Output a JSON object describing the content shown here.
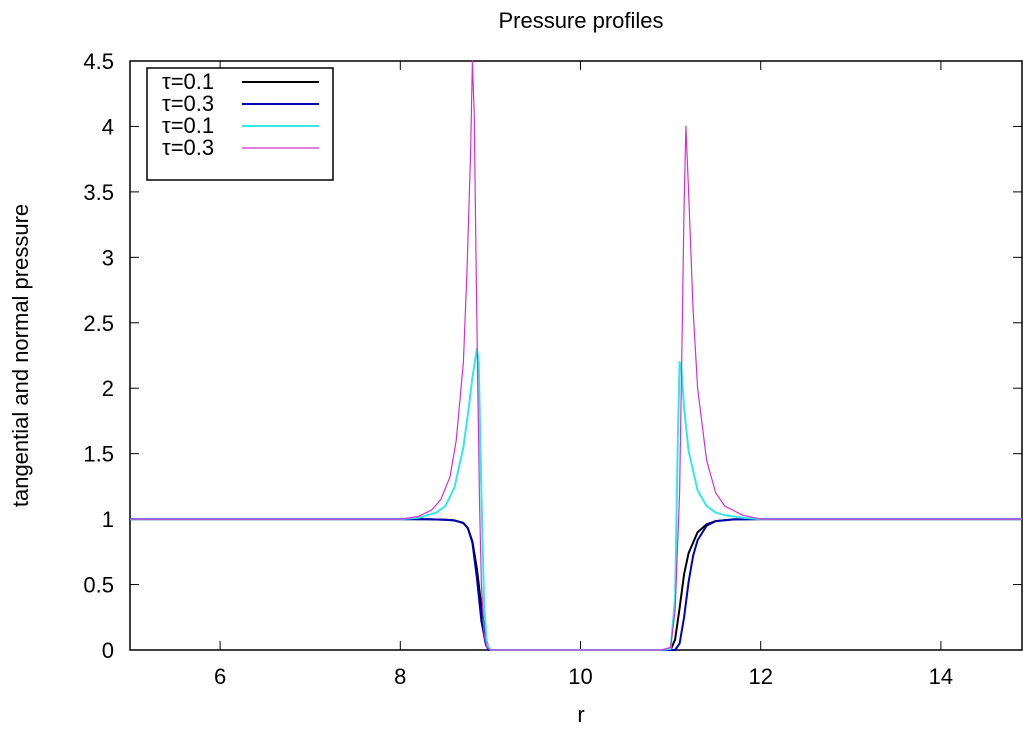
{
  "chart_data": {
    "type": "line",
    "title": "Pressure profiles",
    "xlabel": "r",
    "ylabel": "tangential and normal pressure",
    "xlim": [
      5,
      14.9
    ],
    "ylim": [
      0,
      4.5
    ],
    "x_ticks": [
      6,
      8,
      10,
      12,
      14
    ],
    "y_ticks": [
      0,
      0.5,
      1,
      1.5,
      2,
      2.5,
      3,
      3.5,
      4,
      4.5
    ],
    "grid": false,
    "legend_position": "top-left",
    "series": [
      {
        "name": "τ=0.1",
        "color": "#000000",
        "x": [
          5.0,
          8.0,
          8.3,
          8.5,
          8.6,
          8.7,
          8.75,
          8.8,
          8.85,
          8.9,
          8.95,
          8.98,
          9.0,
          9.5,
          10.0,
          10.5,
          11.0,
          11.05,
          11.1,
          11.15,
          11.2,
          11.3,
          11.4,
          11.5,
          11.7,
          12.0,
          14.9
        ],
        "y": [
          1.0,
          1.0,
          0.999,
          0.995,
          0.99,
          0.97,
          0.93,
          0.83,
          0.62,
          0.33,
          0.09,
          0.01,
          0.0,
          0.0,
          0.0,
          0.0,
          0.0,
          0.08,
          0.32,
          0.58,
          0.74,
          0.9,
          0.96,
          0.985,
          0.998,
          1.0,
          1.0
        ]
      },
      {
        "name": "τ=0.3",
        "color": "#0000b4",
        "x": [
          5.0,
          8.0,
          8.3,
          8.5,
          8.6,
          8.7,
          8.75,
          8.8,
          8.85,
          8.9,
          8.95,
          8.98,
          9.0,
          9.5,
          10.0,
          10.5,
          11.05,
          11.1,
          11.15,
          11.2,
          11.25,
          11.3,
          11.4,
          11.5,
          11.7,
          12.0,
          14.9
        ],
        "y": [
          1.0,
          1.0,
          0.999,
          0.995,
          0.99,
          0.97,
          0.93,
          0.82,
          0.55,
          0.22,
          0.04,
          0.0,
          0.0,
          0.0,
          0.0,
          0.0,
          0.0,
          0.05,
          0.25,
          0.52,
          0.72,
          0.84,
          0.95,
          0.985,
          0.998,
          1.0,
          1.0
        ]
      },
      {
        "name": "τ=0.1",
        "color": "#33e8e8",
        "x": [
          5.0,
          8.0,
          8.2,
          8.4,
          8.5,
          8.6,
          8.7,
          8.75,
          8.8,
          8.85,
          8.87,
          8.9,
          8.93,
          8.96,
          9.0,
          9.5,
          10.0,
          10.5,
          10.9,
          11.0,
          11.05,
          11.08,
          11.1,
          11.12,
          11.15,
          11.2,
          11.3,
          11.4,
          11.5,
          11.6,
          11.8,
          12.0,
          14.9
        ],
        "y": [
          1.0,
          1.0,
          1.01,
          1.05,
          1.1,
          1.24,
          1.55,
          1.8,
          2.08,
          2.3,
          2.2,
          1.2,
          0.35,
          0.05,
          0.0,
          0.0,
          0.0,
          0.0,
          0.0,
          0.01,
          0.4,
          1.6,
          2.2,
          2.15,
          1.85,
          1.52,
          1.22,
          1.1,
          1.05,
          1.03,
          1.01,
          1.0,
          1.0
        ]
      },
      {
        "name": "τ=0.3",
        "color": "#d42fd4",
        "x": [
          5.0,
          8.0,
          8.2,
          8.35,
          8.45,
          8.55,
          8.62,
          8.7,
          8.74,
          8.78,
          8.8,
          8.82,
          8.84,
          8.86,
          8.88,
          8.9,
          8.93,
          8.96,
          9.0,
          9.5,
          10.0,
          10.5,
          10.9,
          11.0,
          11.05,
          11.1,
          11.13,
          11.15,
          11.17,
          11.2,
          11.25,
          11.3,
          11.4,
          11.5,
          11.6,
          11.8,
          12.0,
          14.9
        ],
        "y": [
          1.0,
          1.0,
          1.02,
          1.07,
          1.15,
          1.32,
          1.6,
          2.2,
          2.9,
          3.8,
          4.5,
          4.1,
          3.0,
          2.0,
          1.1,
          0.5,
          0.12,
          0.02,
          0.0,
          0.0,
          0.0,
          0.0,
          0.0,
          0.02,
          0.3,
          1.2,
          2.5,
          3.4,
          4.0,
          3.5,
          2.6,
          2.0,
          1.45,
          1.2,
          1.1,
          1.03,
          1.0,
          1.0
        ]
      }
    ]
  }
}
